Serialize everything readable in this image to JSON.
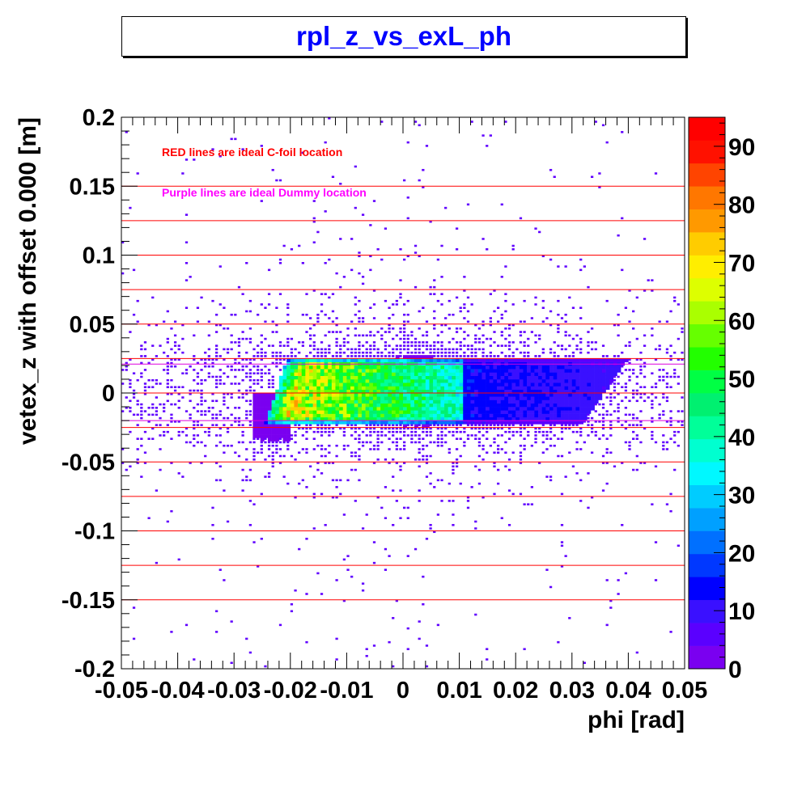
{
  "chart_data": {
    "type": "heatmap",
    "title": "rpl_z_vs_exL_ph",
    "xlabel": "phi [rad]",
    "ylabel": "vetex_z with offset 0.000 [m]",
    "xlim": [
      -0.05,
      0.05
    ],
    "ylim": [
      -0.2,
      0.2
    ],
    "x_ticks": [
      -0.05,
      -0.04,
      -0.03,
      -0.02,
      -0.01,
      0,
      0.01,
      0.02,
      0.03,
      0.04,
      0.05
    ],
    "x_tick_labels": [
      "-0.05",
      "-0.04",
      "-0.03",
      "-0.02",
      "-0.01",
      "0",
      "0.01",
      "0.02",
      "0.03",
      "0.04",
      "0.05"
    ],
    "y_ticks": [
      0.2,
      0.15,
      0.1,
      0.05,
      0,
      -0.05,
      -0.1,
      -0.15,
      -0.2
    ],
    "y_tick_labels": [
      "0.2",
      "0.15",
      "0.1",
      "0.05",
      "0",
      "-0.05",
      "-0.1",
      "-0.15",
      "-0.2"
    ],
    "colorbar": {
      "range": [
        0,
        95
      ],
      "tick_values": [
        0,
        10,
        20,
        30,
        40,
        50,
        60,
        70,
        80,
        90
      ],
      "tick_labels": [
        "0",
        "10",
        "20",
        "30",
        "40",
        "50",
        "60",
        "70",
        "80",
        "90"
      ],
      "palette": [
        "#7a00f0",
        "#5a00ff",
        "#3a10ff",
        "#0000ff",
        "#0038ff",
        "#0070ff",
        "#00a0ff",
        "#00ccff",
        "#00f8ff",
        "#00ffd0",
        "#00ff99",
        "#00f070",
        "#00ff44",
        "#22ff00",
        "#66ff00",
        "#aaff00",
        "#ddff00",
        "#ffee00",
        "#ffcc00",
        "#ff9900",
        "#ff7700",
        "#ff4400",
        "#ff1100",
        "#ff0000"
      ]
    },
    "annotations": [
      {
        "text": "RED lines are ideal C-foil location",
        "color": "#ff0000"
      },
      {
        "text": "Purple lines are ideal Dummy location",
        "color": "#ff00ff"
      }
    ],
    "red_lines_y": [
      0.15,
      0.125,
      0.1,
      0.075,
      0.05,
      0.025,
      0,
      -0.025,
      -0.05,
      -0.075,
      -0.1,
      -0.125,
      -0.15
    ],
    "purple_lines_y": [
      0.021,
      -0.02
    ],
    "density_region": {
      "z_range": [
        -0.022,
        0.025
      ],
      "phi_range": [
        -0.022,
        0.038
      ],
      "peak_phi": -0.017,
      "peak_count": 90
    },
    "colors": {
      "red_line": "#ff0000",
      "purple_line": "#dd00dd",
      "sparse_point": "#6000ff"
    }
  }
}
